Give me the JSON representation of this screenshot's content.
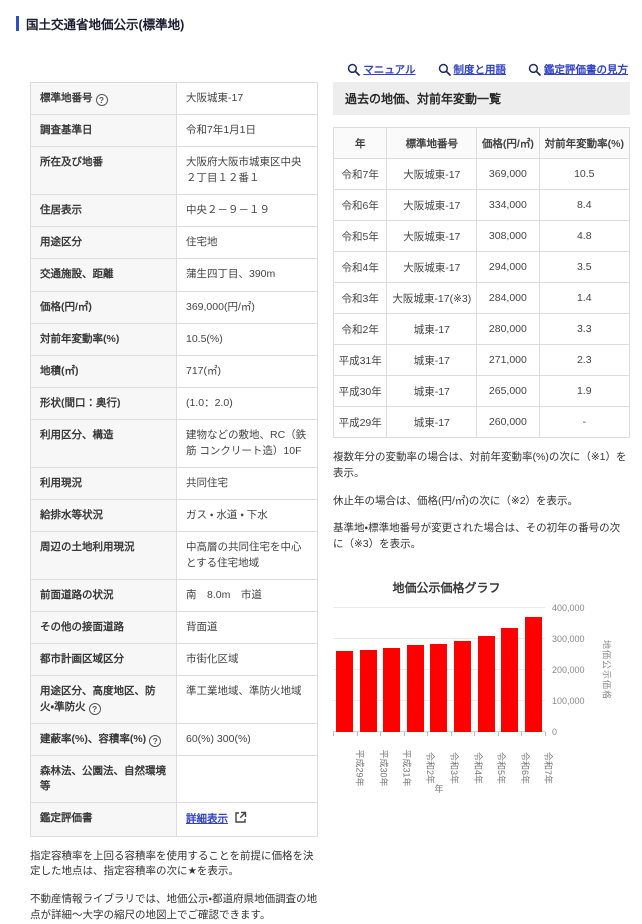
{
  "page": {
    "title": "国土交通省地価公示(標準地)"
  },
  "toolbar": {
    "links": [
      {
        "label": "マニュアル"
      },
      {
        "label": "制度と用語"
      },
      {
        "label": "鑑定評価書の見方"
      }
    ]
  },
  "detail_table": {
    "rows": [
      {
        "label": "標準地番号",
        "help": true,
        "value": "大阪城東-17"
      },
      {
        "label": "調査基準日",
        "help": false,
        "value": "令和7年1月1日"
      },
      {
        "label": "所在及び地番",
        "help": false,
        "value": "大阪府大阪市城東区中央２丁目１２番１"
      },
      {
        "label": "住居表示",
        "help": false,
        "value": "中央２－９－１９"
      },
      {
        "label": "用途区分",
        "help": false,
        "value": "住宅地"
      },
      {
        "label": "交通施設、距離",
        "help": false,
        "value": "蒲生四丁目、390m"
      },
      {
        "label": "価格(円/㎡)",
        "help": false,
        "value": "369,000(円/㎡)"
      },
      {
        "label": "対前年変動率(%)",
        "help": false,
        "value": "10.5(%)"
      },
      {
        "label": "地積(㎡)",
        "help": false,
        "value": "717(㎡)"
      },
      {
        "label": "形状(間口：奥行)",
        "help": false,
        "value": "(1.0：2.0)"
      },
      {
        "label": "利用区分、構造",
        "help": false,
        "value": "建物などの敷地、RC（鉄筋 コンクリート造）10F"
      },
      {
        "label": "利用現況",
        "help": false,
        "value": "共同住宅"
      },
      {
        "label": "給排水等状況",
        "help": false,
        "value": "ガス ・ 水道 ・ 下水"
      },
      {
        "label": "周辺の土地利用現況",
        "help": false,
        "value": "中高層の共同住宅を中心とする住宅地域"
      },
      {
        "label": "前面道路の状況",
        "help": false,
        "value": "南　8.0m　市道"
      },
      {
        "label": "その他の接面道路",
        "help": false,
        "value": "背面道"
      },
      {
        "label": "都市計画区域区分",
        "help": false,
        "value": "市街化区域"
      },
      {
        "label": "用途区分、高度地区、防火・準防火",
        "help": true,
        "value": "準工業地域、準防火地域"
      },
      {
        "label": "建蔽率(%)、容積率(%)",
        "help": true,
        "value": "60(%) 300(%)"
      },
      {
        "label": "森林法、公園法、自然環境等",
        "help": false,
        "value": ""
      },
      {
        "label": "鑑定評価書",
        "help": false,
        "value": "詳細表示",
        "link": true
      }
    ]
  },
  "left_notes": [
    "指定容積率を上回る容積率を使用することを前提に価格を決定した地点は、指定容積率の次に★を表示。",
    "不動産情報ライブラリでは、地価公示・都道府県地価調査の地点が詳細～大字の縮尺の地図上でご確認できます。"
  ],
  "history": {
    "title": "過去の地価、対前年変動一覧",
    "columns": [
      "年",
      "標準地番号",
      "価格(円/㎡)",
      "対前年変動率(%)"
    ],
    "rows": [
      [
        "令和7年",
        "大阪城東-17",
        "369,000",
        "10.5"
      ],
      [
        "令和6年",
        "大阪城東-17",
        "334,000",
        "8.4"
      ],
      [
        "令和5年",
        "大阪城東-17",
        "308,000",
        "4.8"
      ],
      [
        "令和4年",
        "大阪城東-17",
        "294,000",
        "3.5"
      ],
      [
        "令和3年",
        "大阪城東-17(※3)",
        "284,000",
        "1.4"
      ],
      [
        "令和2年",
        "城東-17",
        "280,000",
        "3.3"
      ],
      [
        "平成31年",
        "城東-17",
        "271,000",
        "2.3"
      ],
      [
        "平成30年",
        "城東-17",
        "265,000",
        "1.9"
      ],
      [
        "平成29年",
        "城東-17",
        "260,000",
        "-"
      ]
    ],
    "notes": [
      "複数年分の変動率の場合は、対前年変動率(%)の次に（※1）を表示。",
      "休止年の場合は、価格(円/㎡)の次に（※2）を表示。",
      "基準地・標準地番号が変更された場合は、その初年の番号の次に（※3）を表示。"
    ]
  },
  "chart_data": {
    "type": "bar",
    "title": "地価公示価格グラフ",
    "categories": [
      "平成29年",
      "平成30年",
      "平成31年",
      "令和2年",
      "令和3年",
      "令和4年",
      "令和5年",
      "令和6年",
      "令和7年"
    ],
    "values": [
      260000,
      265000,
      271000,
      280000,
      284000,
      294000,
      308000,
      334000,
      369000
    ],
    "xlabel": "年",
    "ylabel": "地価公示価格",
    "ylim": [
      0,
      400000
    ],
    "yticks": [
      0,
      100000,
      200000,
      300000,
      400000
    ],
    "ytick_labels": [
      "0",
      "100,000",
      "200,000",
      "300,000",
      "400,000"
    ],
    "bar_color": "#ff0000",
    "grid": true,
    "y_axis_side": "right",
    "legend_position": "none"
  },
  "colors": {
    "accent_blue": "#2b52bf",
    "link_blue": "#3142c4",
    "bar_red": "#ff0000",
    "panel_header_bg": "#ededed",
    "label_cell_bg": "#f7f7f7",
    "border": "#dddddd"
  }
}
